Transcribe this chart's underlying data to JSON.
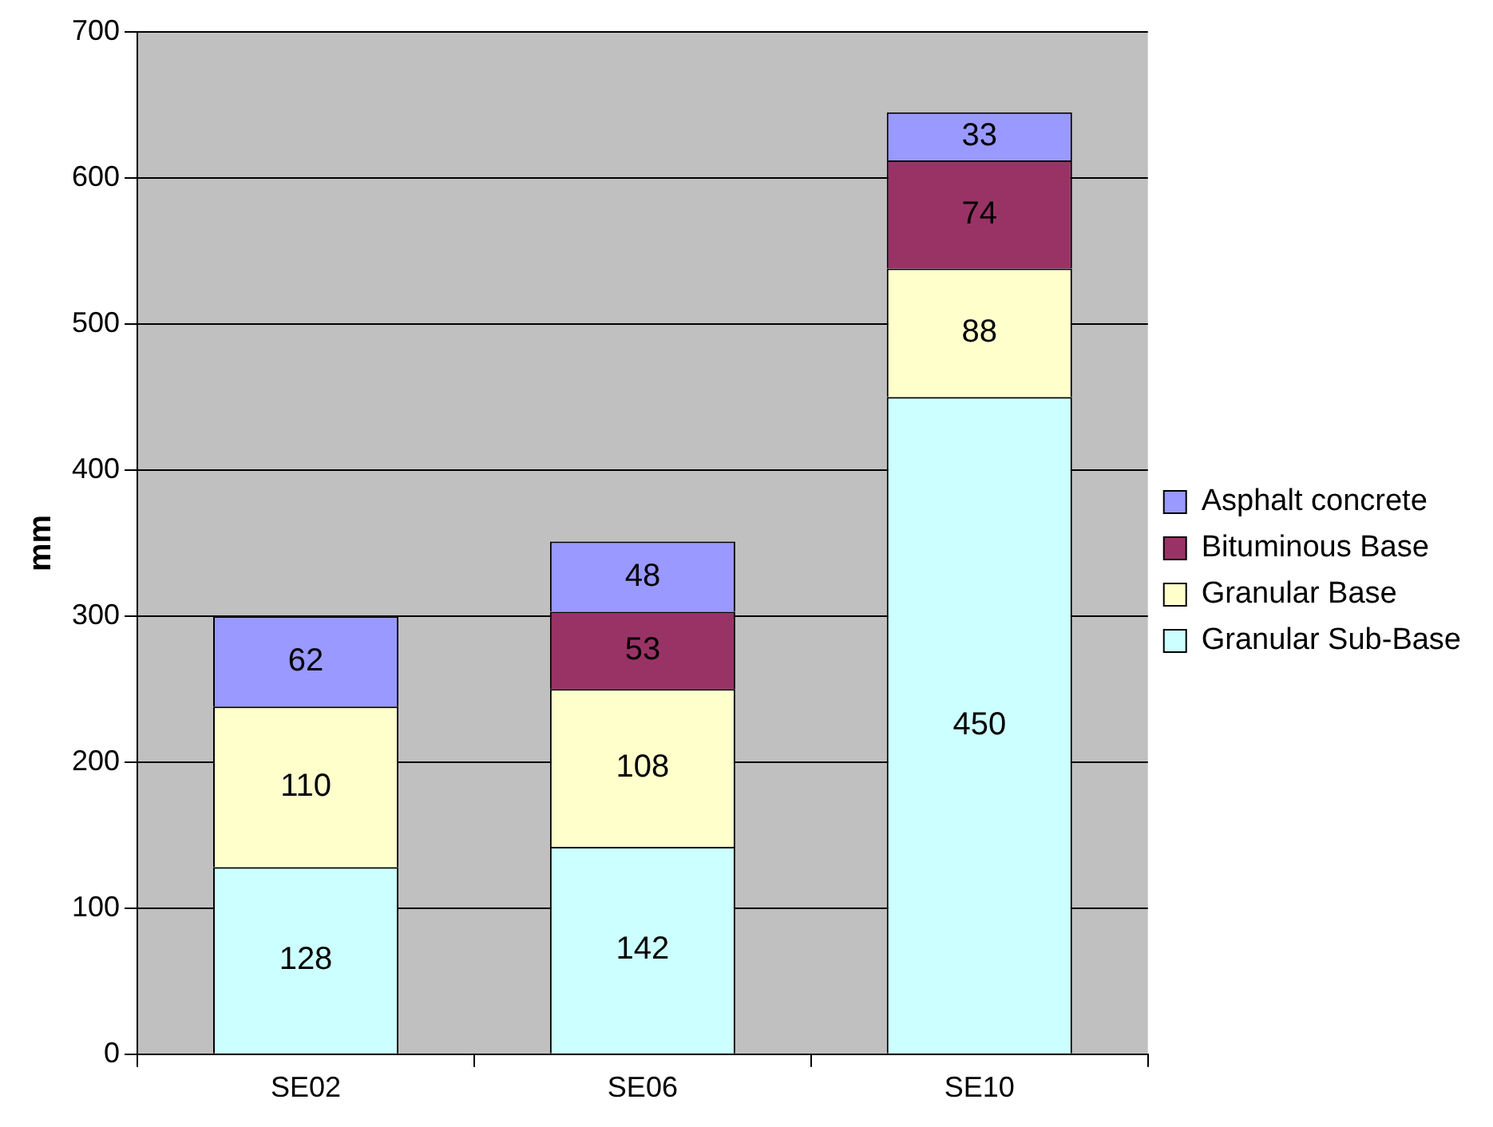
{
  "chart_data": {
    "type": "bar",
    "stacked": true,
    "ylabel": "mm",
    "categories": [
      "SE02",
      "SE06",
      "SE10"
    ],
    "series": [
      {
        "name": "Granular Sub-Base",
        "color": "#ccffff",
        "values": [
          128,
          142,
          450
        ]
      },
      {
        "name": "Granular Base",
        "color": "#ffffcc",
        "values": [
          110,
          108,
          88
        ]
      },
      {
        "name": "Bituminous Base",
        "color": "#993366",
        "values": [
          null,
          53,
          74
        ]
      },
      {
        "name": "Asphalt concrete",
        "color": "#9999ff",
        "values": [
          62,
          48,
          33
        ]
      }
    ],
    "ylim": [
      0,
      700
    ],
    "yticks": [
      0,
      100,
      200,
      300,
      400,
      500,
      600,
      700
    ],
    "grid": "y",
    "legend": "right",
    "data_labels": true
  }
}
